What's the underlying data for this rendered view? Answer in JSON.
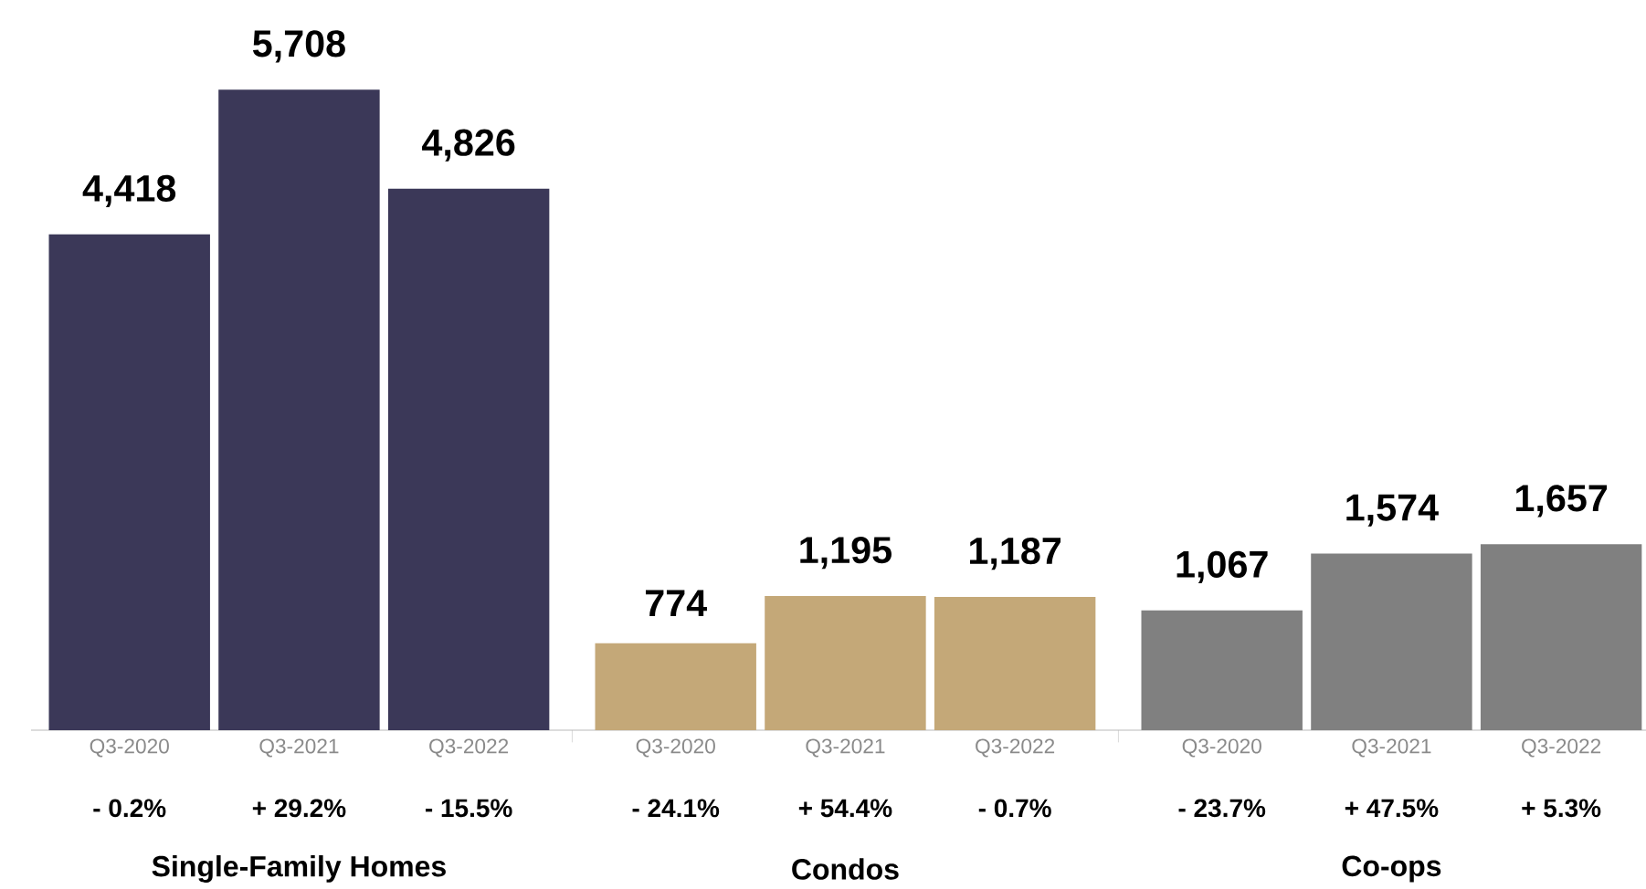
{
  "chart_data": {
    "type": "bar",
    "categories": [
      "Q3-2020",
      "Q3-2021",
      "Q3-2022",
      "Q3-2020",
      "Q3-2021",
      "Q3-2022",
      "Q3-2020",
      "Q3-2021",
      "Q3-2022"
    ],
    "values": [
      4418,
      5708,
      4826,
      774,
      1195,
      1187,
      1067,
      1574,
      1657
    ],
    "value_labels": [
      "4,418",
      "5,708",
      "4,826",
      "774",
      "1,195",
      "1,187",
      "1,067",
      "1,574",
      "1,657"
    ],
    "colors": [
      "#3b3858",
      "#3b3858",
      "#3b3858",
      "#c4a878",
      "#c4a878",
      "#c4a878",
      "#808080",
      "#808080",
      "#808080"
    ],
    "annotations": [
      "- 0.2%",
      "+ 29.2%",
      "- 15.5%",
      "- 24.1%",
      "+ 54.4%",
      "- 0.7%",
      "- 23.7%",
      "+ 47.5%",
      "+ 5.3%",
      "Single-Family Homes",
      "Condos",
      "Co-ops"
    ]
  }
}
